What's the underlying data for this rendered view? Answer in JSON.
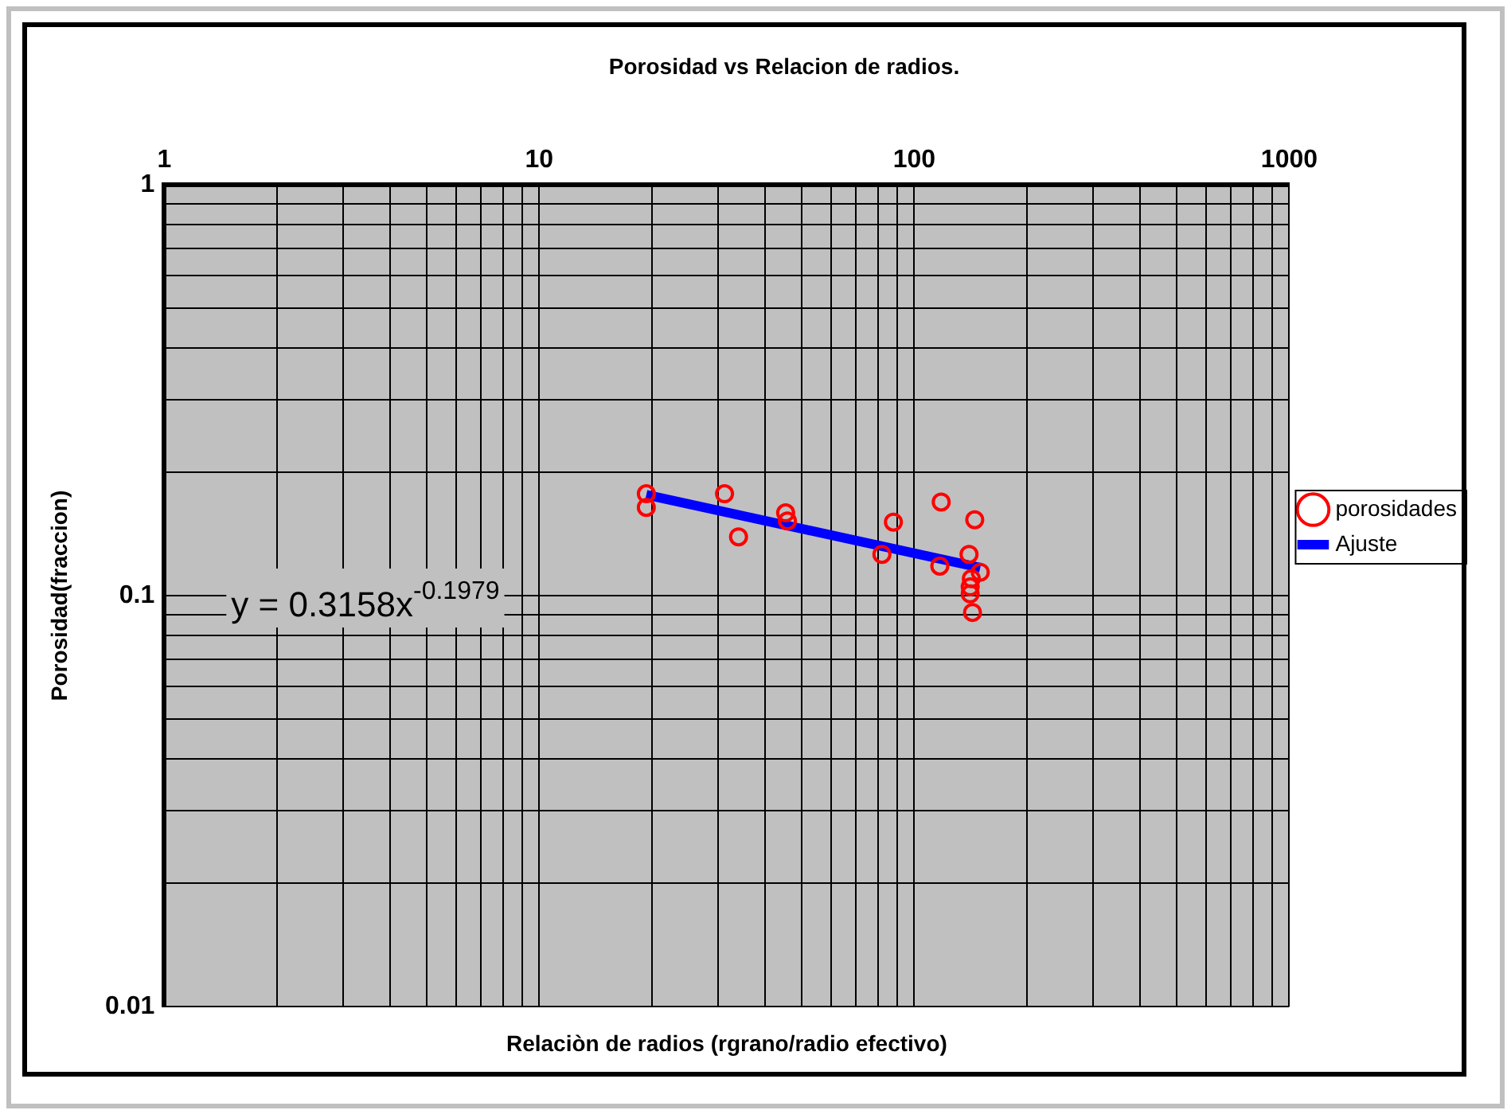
{
  "chart_data": {
    "type": "scatter",
    "title": "Porosidad vs Relacion de radios.",
    "xlabel": "Relaciòn de radios (rgrano/radio efectivo)",
    "ylabel": "Porosidad(fraccion)",
    "log": "xy",
    "grid": true,
    "legend": "right",
    "marker": "circle",
    "xlim": [
      1,
      1000
    ],
    "ylim": [
      0.01,
      1
    ],
    "xticks": [
      1,
      {
        "value": 2,
        "label": null
      },
      {
        "value": 3,
        "label": null
      },
      {
        "value": 4,
        "label": null
      },
      {
        "value": 5,
        "label": null
      },
      {
        "value": 6,
        "label": null
      },
      {
        "value": 7,
        "label": null
      },
      {
        "value": 8,
        "label": null
      },
      {
        "value": 9,
        "label": null
      },
      10,
      {
        "value": 20,
        "label": null
      },
      {
        "value": 30,
        "label": null
      },
      {
        "value": 40,
        "label": null
      },
      {
        "value": 50,
        "label": null
      },
      {
        "value": 60,
        "label": null
      },
      {
        "value": 70,
        "label": null
      },
      {
        "value": 80,
        "label": null
      },
      {
        "value": 90,
        "label": null
      },
      100,
      {
        "value": 200,
        "label": null
      },
      {
        "value": 300,
        "label": null
      },
      {
        "value": 400,
        "label": null
      },
      {
        "value": 500,
        "label": null
      },
      {
        "value": 600,
        "label": null
      },
      {
        "value": 700,
        "label": null
      },
      {
        "value": 800,
        "label": null
      },
      {
        "value": 900,
        "label": null
      },
      1000
    ],
    "yticks": [
      0.01,
      {
        "value": 0.02,
        "label": null
      },
      {
        "value": 0.03,
        "label": null
      },
      {
        "value": 0.04,
        "label": null
      },
      {
        "value": 0.05,
        "label": null
      },
      {
        "value": 0.06,
        "label": null
      },
      {
        "value": 0.07,
        "label": null
      },
      {
        "value": 0.08,
        "label": null
      },
      {
        "value": 0.09,
        "label": null
      },
      0.1,
      {
        "value": 0.2,
        "label": null
      },
      {
        "value": 0.3,
        "label": null
      },
      {
        "value": 0.4,
        "label": null
      },
      {
        "value": 0.5,
        "label": null
      },
      {
        "value": 0.6,
        "label": null
      },
      {
        "value": 0.7,
        "label": null
      },
      {
        "value": 0.8,
        "label": null
      },
      {
        "value": 0.9,
        "label": null
      },
      1
    ],
    "annotations": [
      {
        "text": "y = 0.3158x$^{-0.1979}$"
      }
    ],
    "series": [
      {
        "name": "porosidades",
        "type": "scatter",
        "color": "#ff0000",
        "x": [
          19.3,
          19.3,
          31.2,
          34,
          45.4,
          45.9,
          82,
          88,
          118,
          117,
          145,
          140,
          150,
          142,
          141,
          141,
          143
        ],
        "values": [
          0.177,
          0.164,
          0.177,
          0.139,
          0.159,
          0.152,
          0.126,
          0.151,
          0.169,
          0.118,
          0.153,
          0.126,
          0.114,
          0.11,
          0.105,
          0.101,
          0.091
        ]
      },
      {
        "name": "Ajuste",
        "type": "line",
        "color": "#0000ff",
        "marker": "none",
        "x": [
          19.3,
          150
        ],
        "values": [
          0.176,
          0.117
        ]
      }
    ]
  }
}
